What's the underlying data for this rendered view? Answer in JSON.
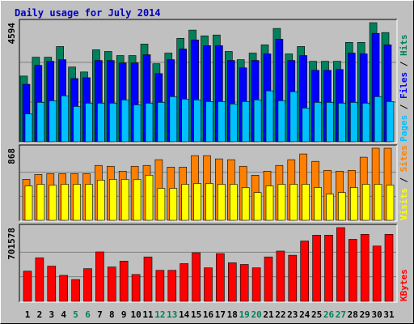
{
  "chart_data": [
    {
      "type": "bar",
      "title": "Daily usage for July 2014",
      "categories": [
        "1",
        "2",
        "3",
        "4",
        "5",
        "6",
        "7",
        "8",
        "9",
        "10",
        "11",
        "12",
        "13",
        "14",
        "15",
        "16",
        "17",
        "18",
        "19",
        "20",
        "21",
        "22",
        "23",
        "24",
        "25",
        "26",
        "27",
        "28",
        "29",
        "30",
        "31"
      ],
      "category_colors": [
        "#000000",
        "#000000",
        "#000000",
        "#000000",
        "#00805c",
        "#00805c",
        "#000000",
        "#000000",
        "#000000",
        "#000000",
        "#000000",
        "#00805c",
        "#00805c",
        "#000000",
        "#000000",
        "#000000",
        "#000000",
        "#000000",
        "#00805c",
        "#00805c",
        "#000000",
        "#000000",
        "#000000",
        "#000000",
        "#000000",
        "#00805c",
        "#00805c",
        "#000000",
        "#000000",
        "#000000",
        "#000000"
      ],
      "legend_separator": " / ",
      "series": [
        {
          "name": "Hits",
          "color": "#00805c",
          "values": [
            2535,
            3263,
            3263,
            3675,
            2883,
            2693,
            3548,
            3485,
            3327,
            3327,
            3770,
            3010,
            3422,
            3992,
            4309,
            4087,
            4119,
            3485,
            3168,
            3422,
            3739,
            4372,
            3390,
            3675,
            3105,
            3105,
            3105,
            3834,
            3834,
            4594,
            4214
          ]
        },
        {
          "name": "Files",
          "color": "#0000ff",
          "values": [
            2218,
            2946,
            3105,
            3168,
            2439,
            2471,
            3137,
            3137,
            3041,
            3041,
            3358,
            2630,
            3168,
            3580,
            3929,
            3707,
            3707,
            3137,
            2851,
            3137,
            3390,
            3960,
            3137,
            3327,
            2756,
            2756,
            2788,
            3422,
            3390,
            4182,
            3739
          ]
        },
        {
          "name": "Pages",
          "color": "#00c0ff",
          "values": [
            1077,
            1521,
            1584,
            1774,
            1362,
            1489,
            1489,
            1489,
            1616,
            1426,
            1489,
            1521,
            1742,
            1647,
            1616,
            1552,
            1552,
            1457,
            1552,
            1616,
            1964,
            1584,
            1932,
            1299,
            1521,
            1521,
            1489,
            1521,
            1489,
            1742,
            1552
          ]
        }
      ],
      "ylim": [
        0,
        4594
      ],
      "yticks": [
        4594
      ],
      "grid_divisions": 3
    },
    {
      "type": "bar",
      "series": [
        {
          "name": "Sites",
          "color": "#ff8000",
          "values": [
            493,
            552,
            562,
            562,
            562,
            562,
            661,
            651,
            592,
            651,
            661,
            730,
            641,
            641,
            779,
            779,
            740,
            730,
            651,
            543,
            592,
            661,
            730,
            799,
            710,
            602,
            592,
            602,
            760,
            868,
            868
          ]
        },
        {
          "name": "Visits",
          "color": "#ffff00",
          "values": [
            414,
            434,
            424,
            434,
            434,
            434,
            483,
            493,
            493,
            493,
            543,
            385,
            385,
            434,
            444,
            444,
            434,
            434,
            395,
            335,
            414,
            434,
            434,
            434,
            395,
            316,
            335,
            395,
            434,
            434,
            424
          ]
        }
      ],
      "ylim": [
        0,
        868
      ],
      "yticks": [
        868
      ],
      "grid_divisions": 3
    },
    {
      "type": "bar",
      "series": [
        {
          "name": "KBytes",
          "color": "#ff0000",
          "values": [
            287010,
            414570,
            334845,
            247148,
            207285,
            310928,
            470378,
            326873,
            382680,
            255120,
            422543,
            294983,
            294983,
            358763,
            462405,
            318900,
            454433,
            366735,
            350790,
            318900,
            422543,
            478350,
            438488,
            574020,
            629828,
            629828,
            701578,
            589965,
            637800,
            526185,
            637800
          ]
        }
      ],
      "ylim": [
        0,
        701578
      ],
      "yticks": [
        701578
      ],
      "grid_divisions": 3
    }
  ]
}
